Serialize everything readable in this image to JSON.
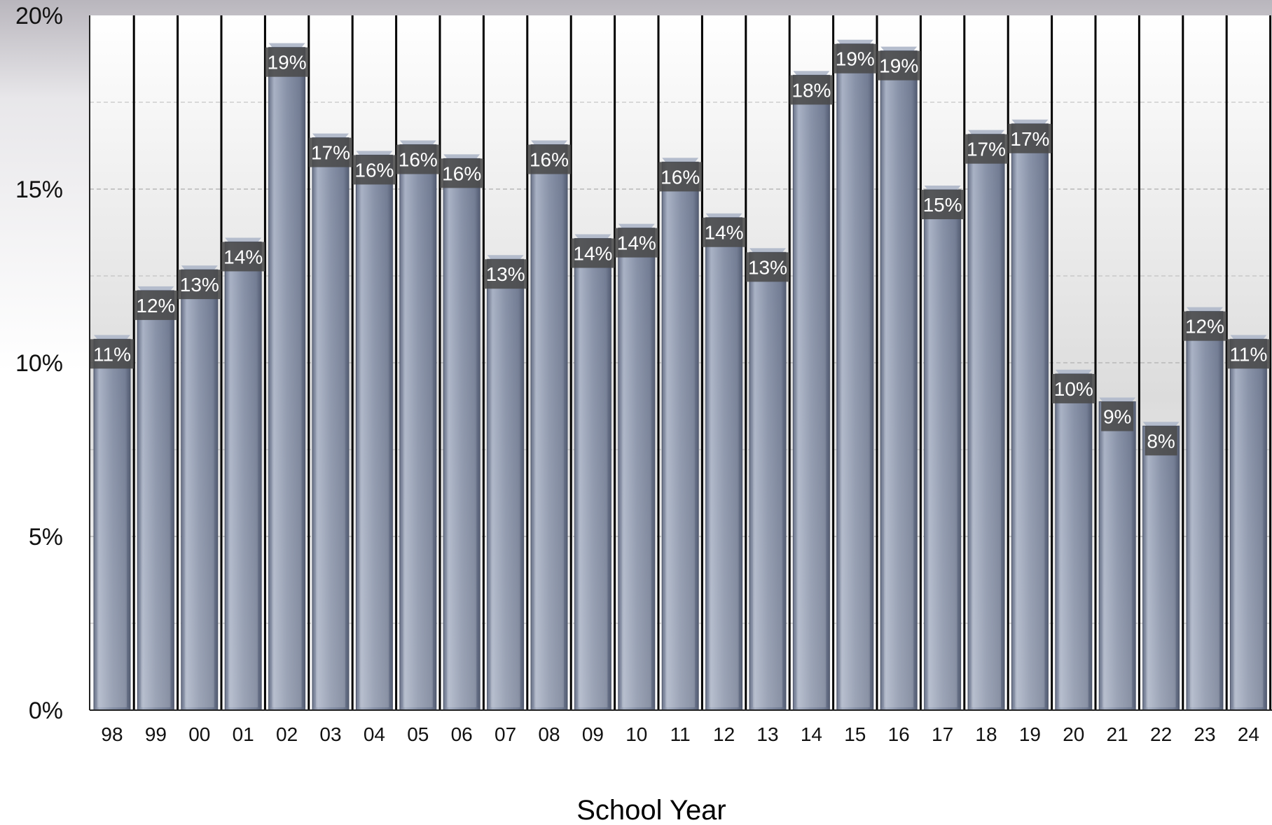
{
  "chart_data": {
    "type": "bar",
    "title": "",
    "xlabel": "School Year",
    "ylabel": "",
    "ylim": [
      0,
      20
    ],
    "y_ticks": [
      "0%",
      "5%",
      "10%",
      "15%",
      "20%"
    ],
    "y_tick_values": [
      0,
      5,
      10,
      15,
      20
    ],
    "grid": true,
    "legend": "none",
    "categories": [
      "98",
      "99",
      "00",
      "01",
      "02",
      "03",
      "04",
      "05",
      "06",
      "07",
      "08",
      "09",
      "10",
      "11",
      "12",
      "13",
      "14",
      "15",
      "16",
      "17",
      "18",
      "19",
      "20",
      "21",
      "22",
      "23",
      "24"
    ],
    "values": [
      10.8,
      12.2,
      12.8,
      13.6,
      19.2,
      16.6,
      16.1,
      16.4,
      16.0,
      13.1,
      16.4,
      13.7,
      14.0,
      15.9,
      14.3,
      13.3,
      18.4,
      19.3,
      19.1,
      15.1,
      16.7,
      17.0,
      9.8,
      9.0,
      8.3,
      11.6,
      10.8
    ],
    "data_labels": [
      "11%",
      "12%",
      "13%",
      "14%",
      "19%",
      "17%",
      "16%",
      "16%",
      "16%",
      "13%",
      "16%",
      "14%",
      "14%",
      "16%",
      "14%",
      "13%",
      "18%",
      "19%",
      "19%",
      "15%",
      "17%",
      "17%",
      "10%",
      "9%",
      "8%",
      "12%",
      "11%"
    ],
    "colors": {
      "bar": "#8a93a8",
      "bar_dark": "#5d6780",
      "bar_light": "#b4bccc",
      "label_bg": "#4a4a4a",
      "label_text": "#ffffff",
      "separator": "#000000",
      "gridline": "#b8b8b8"
    }
  }
}
